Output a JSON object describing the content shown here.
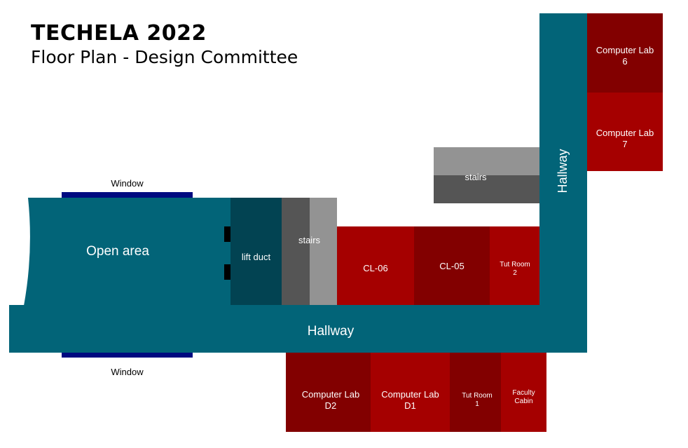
{
  "header": {
    "title": "TECHELA 2022",
    "subtitle": "Floor Plan - Design Committee"
  },
  "colors": {
    "hallway": "#026478",
    "lift_duct": "#024352",
    "stairs_dark": "#555555",
    "stairs_light": "#939393",
    "room_dark": "#820000",
    "room_red": "#a50000",
    "window": "#000a80"
  },
  "rooms": {
    "open_area": "Open area",
    "lift_duct": "lift duct",
    "stairs_main": "stairs",
    "stairs_upper": "stairs",
    "cl06": "CL-06",
    "cl05": "CL-05",
    "tut_room_2": "Tut Room\n2",
    "computer_lab_6": "Computer Lab\n6",
    "computer_lab_7": "Computer Lab\n7",
    "hallway_horizontal": "Hallway",
    "hallway_vertical": "Hallway",
    "computer_lab_d2": "Computer Lab\nD2",
    "computer_lab_d1": "Computer Lab\nD1",
    "tut_room_1": "Tut Room\n1",
    "faculty_cabin": "Faculty\nCabin"
  },
  "windows": {
    "top": "Window",
    "bottom": "Window"
  }
}
